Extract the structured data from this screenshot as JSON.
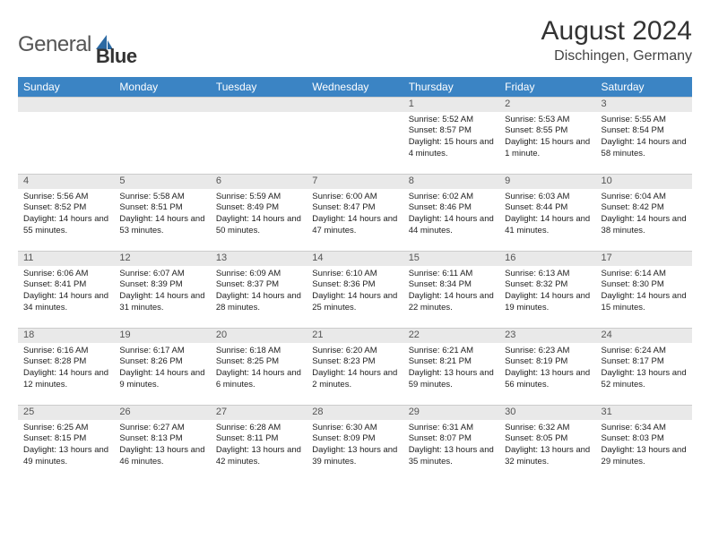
{
  "logo": {
    "part1": "General",
    "part2": "Blue",
    "icon_color": "#2c6aa3"
  },
  "title": "August 2024",
  "location": "Dischingen, Germany",
  "header_bg": "#3b84c4",
  "daynum_bg": "#e9e9e9",
  "text_color": "#222222",
  "columns": [
    "Sunday",
    "Monday",
    "Tuesday",
    "Wednesday",
    "Thursday",
    "Friday",
    "Saturday"
  ],
  "weeks": [
    [
      null,
      null,
      null,
      null,
      {
        "n": "1",
        "sr": "5:52 AM",
        "ss": "8:57 PM",
        "dl": "15 hours and 4 minutes."
      },
      {
        "n": "2",
        "sr": "5:53 AM",
        "ss": "8:55 PM",
        "dl": "15 hours and 1 minute."
      },
      {
        "n": "3",
        "sr": "5:55 AM",
        "ss": "8:54 PM",
        "dl": "14 hours and 58 minutes."
      }
    ],
    [
      {
        "n": "4",
        "sr": "5:56 AM",
        "ss": "8:52 PM",
        "dl": "14 hours and 55 minutes."
      },
      {
        "n": "5",
        "sr": "5:58 AM",
        "ss": "8:51 PM",
        "dl": "14 hours and 53 minutes."
      },
      {
        "n": "6",
        "sr": "5:59 AM",
        "ss": "8:49 PM",
        "dl": "14 hours and 50 minutes."
      },
      {
        "n": "7",
        "sr": "6:00 AM",
        "ss": "8:47 PM",
        "dl": "14 hours and 47 minutes."
      },
      {
        "n": "8",
        "sr": "6:02 AM",
        "ss": "8:46 PM",
        "dl": "14 hours and 44 minutes."
      },
      {
        "n": "9",
        "sr": "6:03 AM",
        "ss": "8:44 PM",
        "dl": "14 hours and 41 minutes."
      },
      {
        "n": "10",
        "sr": "6:04 AM",
        "ss": "8:42 PM",
        "dl": "14 hours and 38 minutes."
      }
    ],
    [
      {
        "n": "11",
        "sr": "6:06 AM",
        "ss": "8:41 PM",
        "dl": "14 hours and 34 minutes."
      },
      {
        "n": "12",
        "sr": "6:07 AM",
        "ss": "8:39 PM",
        "dl": "14 hours and 31 minutes."
      },
      {
        "n": "13",
        "sr": "6:09 AM",
        "ss": "8:37 PM",
        "dl": "14 hours and 28 minutes."
      },
      {
        "n": "14",
        "sr": "6:10 AM",
        "ss": "8:36 PM",
        "dl": "14 hours and 25 minutes."
      },
      {
        "n": "15",
        "sr": "6:11 AM",
        "ss": "8:34 PM",
        "dl": "14 hours and 22 minutes."
      },
      {
        "n": "16",
        "sr": "6:13 AM",
        "ss": "8:32 PM",
        "dl": "14 hours and 19 minutes."
      },
      {
        "n": "17",
        "sr": "6:14 AM",
        "ss": "8:30 PM",
        "dl": "14 hours and 15 minutes."
      }
    ],
    [
      {
        "n": "18",
        "sr": "6:16 AM",
        "ss": "8:28 PM",
        "dl": "14 hours and 12 minutes."
      },
      {
        "n": "19",
        "sr": "6:17 AM",
        "ss": "8:26 PM",
        "dl": "14 hours and 9 minutes."
      },
      {
        "n": "20",
        "sr": "6:18 AM",
        "ss": "8:25 PM",
        "dl": "14 hours and 6 minutes."
      },
      {
        "n": "21",
        "sr": "6:20 AM",
        "ss": "8:23 PM",
        "dl": "14 hours and 2 minutes."
      },
      {
        "n": "22",
        "sr": "6:21 AM",
        "ss": "8:21 PM",
        "dl": "13 hours and 59 minutes."
      },
      {
        "n": "23",
        "sr": "6:23 AM",
        "ss": "8:19 PM",
        "dl": "13 hours and 56 minutes."
      },
      {
        "n": "24",
        "sr": "6:24 AM",
        "ss": "8:17 PM",
        "dl": "13 hours and 52 minutes."
      }
    ],
    [
      {
        "n": "25",
        "sr": "6:25 AM",
        "ss": "8:15 PM",
        "dl": "13 hours and 49 minutes."
      },
      {
        "n": "26",
        "sr": "6:27 AM",
        "ss": "8:13 PM",
        "dl": "13 hours and 46 minutes."
      },
      {
        "n": "27",
        "sr": "6:28 AM",
        "ss": "8:11 PM",
        "dl": "13 hours and 42 minutes."
      },
      {
        "n": "28",
        "sr": "6:30 AM",
        "ss": "8:09 PM",
        "dl": "13 hours and 39 minutes."
      },
      {
        "n": "29",
        "sr": "6:31 AM",
        "ss": "8:07 PM",
        "dl": "13 hours and 35 minutes."
      },
      {
        "n": "30",
        "sr": "6:32 AM",
        "ss": "8:05 PM",
        "dl": "13 hours and 32 minutes."
      },
      {
        "n": "31",
        "sr": "6:34 AM",
        "ss": "8:03 PM",
        "dl": "13 hours and 29 minutes."
      }
    ]
  ],
  "labels": {
    "sunrise": "Sunrise:",
    "sunset": "Sunset:",
    "daylight": "Daylight:"
  }
}
